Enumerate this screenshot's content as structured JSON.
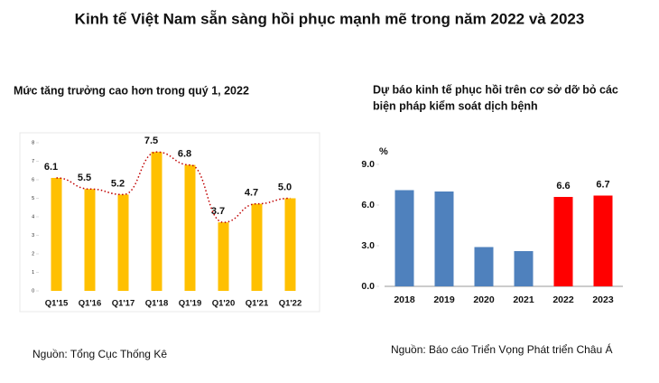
{
  "title": "Kinh tế Việt Nam sẵn sàng hồi phục mạnh mẽ trong năm 2022 và 2023",
  "chart_data": [
    {
      "type": "bar",
      "title": "Mức tăng trưởng cao hơn trong quý 1, 2022",
      "categories": [
        "Q1'15",
        "Q1'16",
        "Q1'17",
        "Q1'18",
        "Q1'19",
        "Q1'20",
        "Q1'21",
        "Q1'22"
      ],
      "values": [
        6.1,
        5.5,
        5.2,
        7.5,
        6.8,
        3.7,
        4.7,
        5.0
      ],
      "value_labels": [
        "6.1",
        "5.5",
        "5.2",
        "7.5",
        "6.8",
        "3.7",
        "4.7",
        "5.0"
      ],
      "color": "#ffc000",
      "trend_color": "#c00000",
      "ylim": [
        0,
        8
      ],
      "yticks": [
        0,
        1,
        2,
        3,
        4,
        5,
        6,
        7,
        8
      ],
      "source": "Nguồn: Tổng Cục Thống Kê"
    },
    {
      "type": "bar",
      "title_lines": [
        "Dự báo kinh tế phục hồi trên cơ sở dỡ bỏ các",
        "biện pháp kiểm soát dịch bệnh"
      ],
      "y_label": "%",
      "categories": [
        "2018",
        "2019",
        "2020",
        "2021",
        "2022",
        "2023"
      ],
      "values": [
        7.1,
        7.0,
        2.9,
        2.6,
        6.6,
        6.7
      ],
      "value_labels": [
        null,
        null,
        null,
        null,
        "6.6",
        "6.7"
      ],
      "colors": [
        "#4f81bd",
        "#4f81bd",
        "#4f81bd",
        "#4f81bd",
        "#ff0000",
        "#ff0000"
      ],
      "ylim": [
        0,
        9
      ],
      "yticks": [
        {
          "value": 0,
          "label": "0.0"
        },
        {
          "value": 3,
          "label": "3.0"
        },
        {
          "value": 6,
          "label": "6.0"
        },
        {
          "value": 9,
          "label": "9.0"
        }
      ],
      "source": "Nguồn: Báo cáo Triển Vọng Phát triển Châu Á"
    }
  ]
}
